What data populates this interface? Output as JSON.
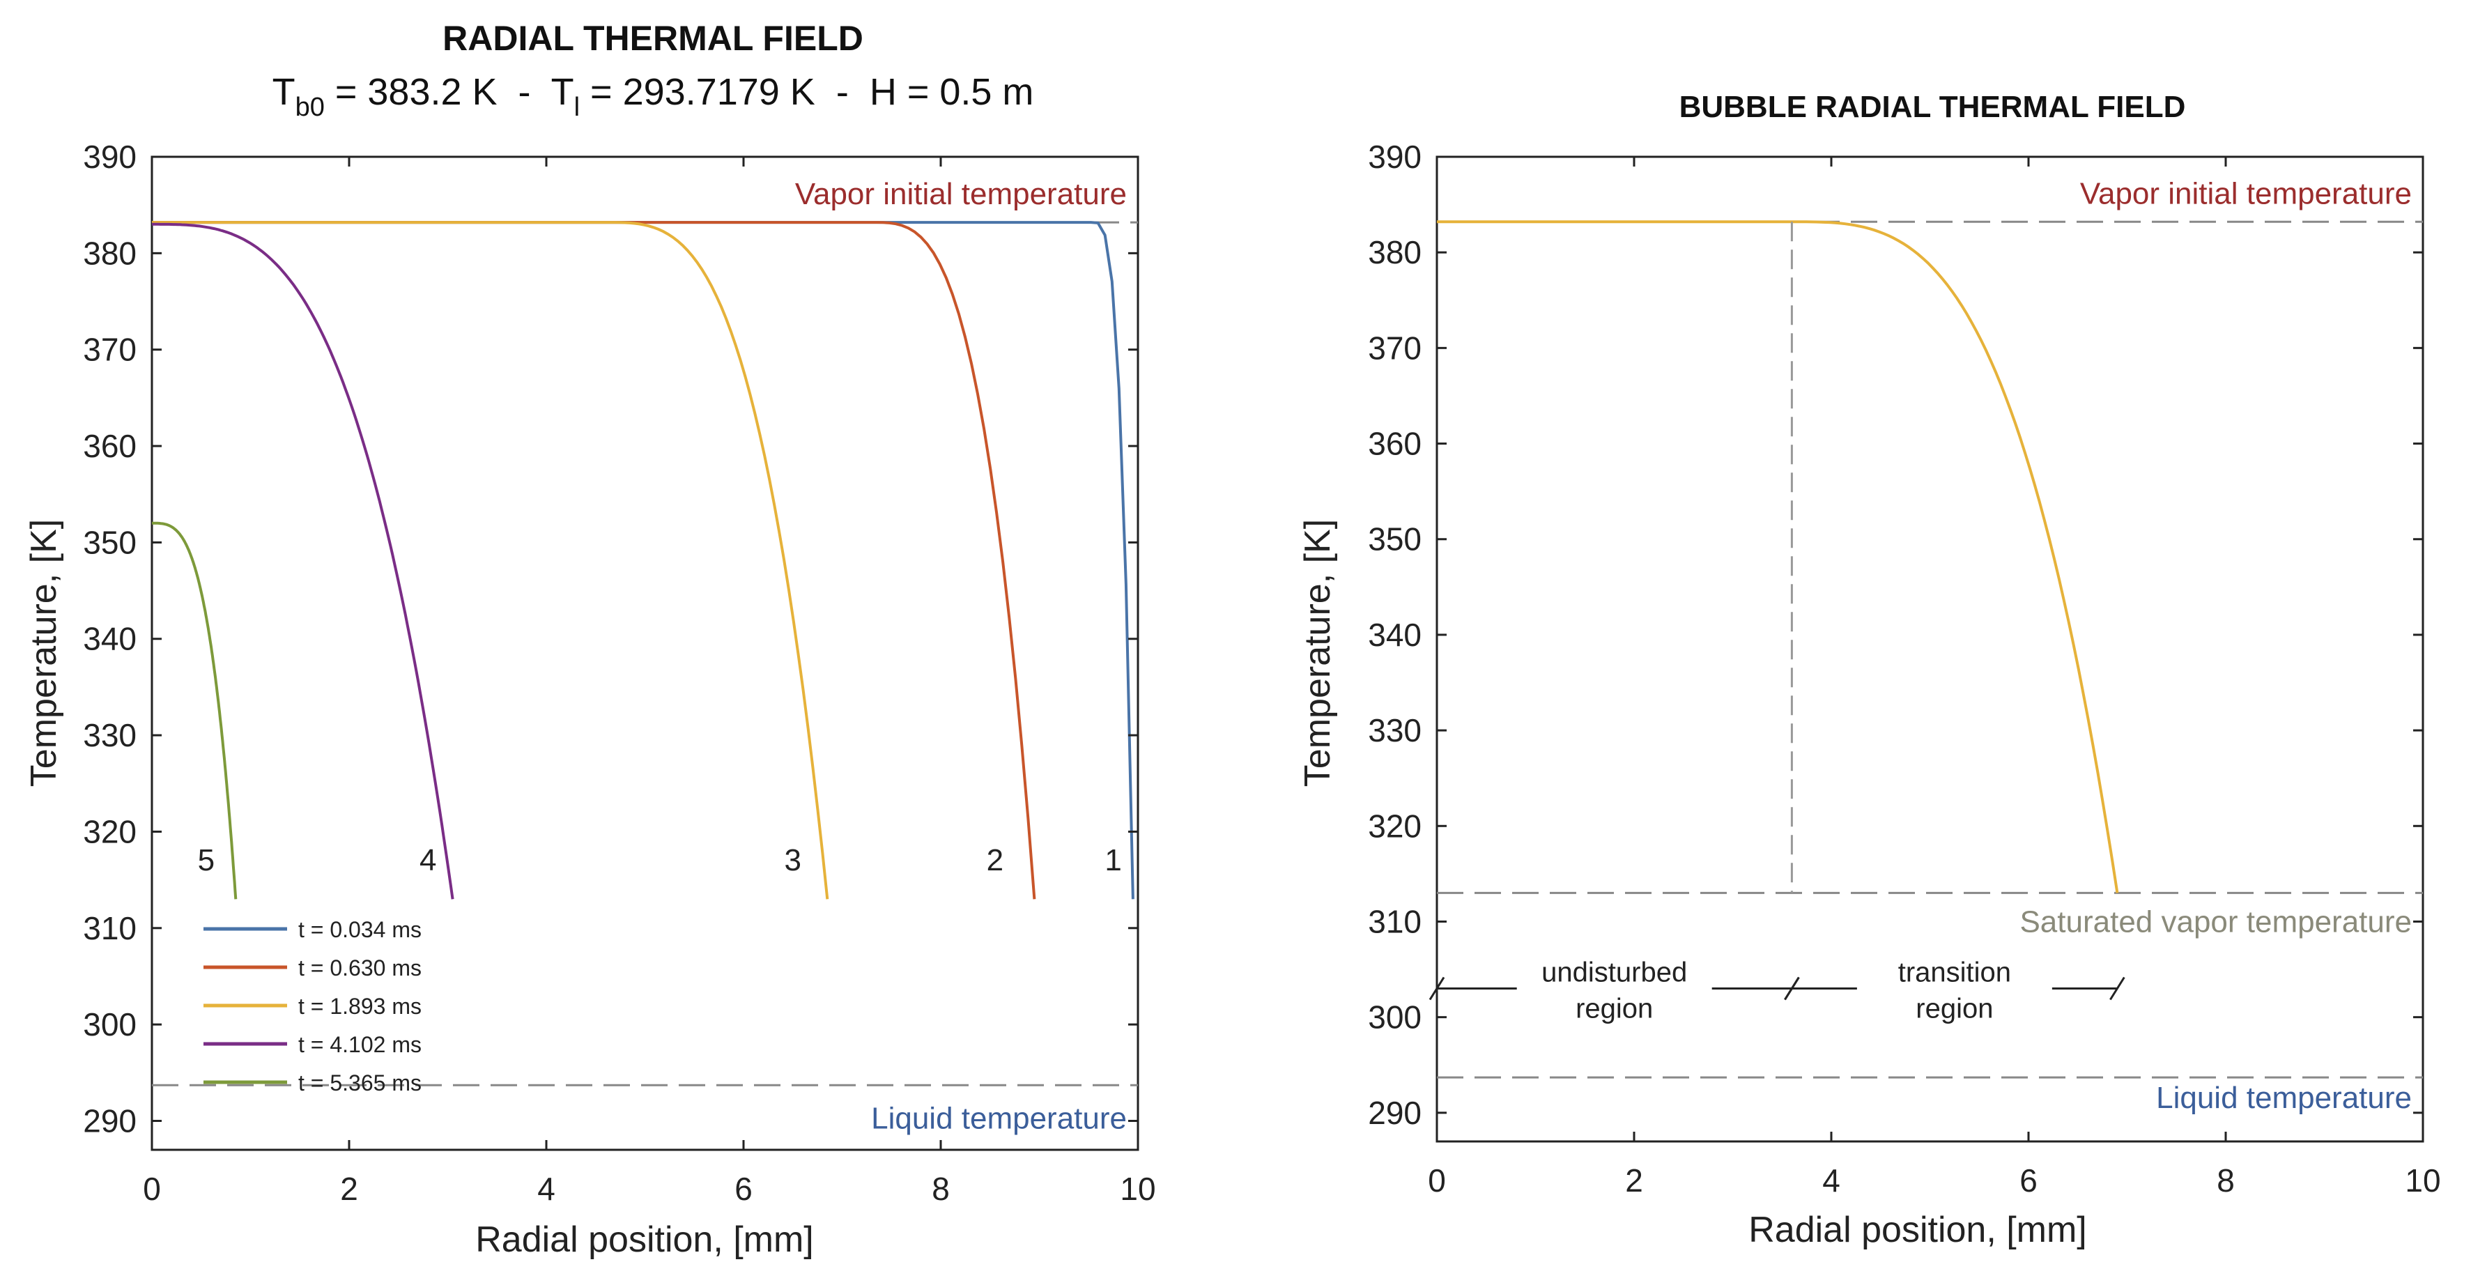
{
  "chart_data": [
    {
      "type": "line",
      "title": "RADIAL THERMAL FIELD",
      "subtitle": {
        "t_label": "T",
        "t_sub": "b0",
        "t_value": " = 383.2 K",
        "sep1": "  -  ",
        "tl_label": "T",
        "tl_sub": "l",
        "tl_value": " = 293.7179 K",
        "sep2": "  -  ",
        "h_text": "H = 0.5 m"
      },
      "xlabel": "Radial position, [mm]",
      "ylabel": "Temperature, [K]",
      "xlim": [
        0,
        10
      ],
      "ylim": [
        287,
        390
      ],
      "xticks": [
        0,
        2,
        4,
        6,
        8,
        10
      ],
      "yticks": [
        290,
        300,
        310,
        320,
        330,
        340,
        350,
        360,
        370,
        380,
        390
      ],
      "grid": false,
      "legend_position": "bottom-left",
      "series": [
        {
          "name": "t = 0.034 ms",
          "label": "1",
          "color": "#4a74a8",
          "plateau": 383.2,
          "x_end": 9.95,
          "x_knee": 9.55,
          "y_end": 313,
          "label_x": 9.75
        },
        {
          "name": "t = 0.630 ms",
          "label": "2",
          "color": "#c8552a",
          "plateau": 383.2,
          "x_end": 8.95,
          "x_knee": 7.3,
          "y_end": 313,
          "label_x": 8.55
        },
        {
          "name": "t = 1.893 ms",
          "label": "3",
          "color": "#e6b23a",
          "plateau": 383.2,
          "x_end": 6.85,
          "x_knee": 4.6,
          "y_end": 313,
          "label_x": 6.5
        },
        {
          "name": "t = 4.102 ms",
          "label": "4",
          "color": "#7a2d86",
          "plateau": 383.0,
          "x_end": 3.05,
          "x_knee": 0.0,
          "y_end": 313,
          "label_x": 2.8
        },
        {
          "name": "t = 5.365 ms",
          "label": "5",
          "color": "#7d9a3a",
          "plateau": 352.0,
          "x_end": 0.85,
          "x_knee": 0.0,
          "y_end": 313,
          "label_x": 0.55
        }
      ],
      "reference_lines": [
        {
          "y": 383.2,
          "label": "Vapor initial temperature",
          "color": "#9b2d2d"
        },
        {
          "y": 293.7,
          "label": "Liquid temperature",
          "color": "#3b5e9a"
        }
      ],
      "curve_labels_y": 316
    },
    {
      "type": "line",
      "title": "BUBBLE RADIAL THERMAL FIELD",
      "xlabel": "Radial position, [mm]",
      "ylabel": "Temperature, [K]",
      "xlim": [
        0,
        10
      ],
      "ylim": [
        287,
        390
      ],
      "xticks": [
        0,
        2,
        4,
        6,
        8,
        10
      ],
      "yticks": [
        290,
        300,
        310,
        320,
        330,
        340,
        350,
        360,
        370,
        380,
        390
      ],
      "grid": false,
      "series": [
        {
          "name": "t = 1.893 ms",
          "color": "#e6b23a",
          "plateau": 383.2,
          "x_end": 6.9,
          "x_knee": 3.6,
          "y_end": 313
        }
      ],
      "reference_lines": [
        {
          "y": 383.2,
          "label": "Vapor initial temperature",
          "color": "#9b2d2d"
        },
        {
          "y": 313.0,
          "label": "Saturated vapor temperature",
          "color": "#8a8a7a"
        },
        {
          "y": 293.7,
          "label": "Liquid temperature",
          "color": "#3b5e9a"
        }
      ],
      "region_divider": {
        "x": 3.6
      },
      "regions": [
        {
          "line1": "undisturbed",
          "line2": "region",
          "x_from": 0,
          "x_to": 3.6
        },
        {
          "line1": "transition",
          "line2": "region",
          "x_from": 3.6,
          "x_to": 6.9
        }
      ],
      "region_y": 303
    }
  ]
}
